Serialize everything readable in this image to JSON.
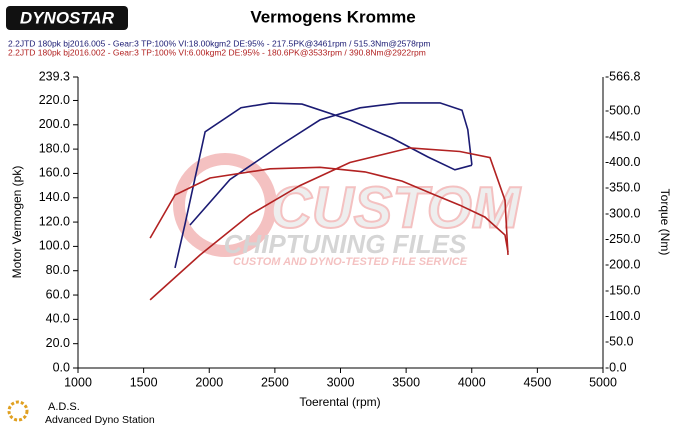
{
  "logo": "DYNOSTAR",
  "chart_data": {
    "type": "line",
    "title": "Vermogens Kromme",
    "xlabel": "Toerental (rpm)",
    "ylabel": "Motor Vermogen (pk)",
    "y2label": "Torque (Nm)",
    "xlim": [
      1000,
      5000
    ],
    "xticks": [
      1000,
      1500,
      2000,
      2500,
      3000,
      3500,
      4000,
      4500,
      5000
    ],
    "ylim": [
      0,
      239.3
    ],
    "yticks": [
      {
        "value": 0,
        "label": "0.0"
      },
      {
        "value": 20,
        "label": "20.0"
      },
      {
        "value": 40,
        "label": "40.0"
      },
      {
        "value": 60,
        "label": "60.0"
      },
      {
        "value": 80,
        "label": "80.0"
      },
      {
        "value": 100,
        "label": "100.0"
      },
      {
        "value": 120,
        "label": "120.0"
      },
      {
        "value": 140,
        "label": "140.0"
      },
      {
        "value": 160,
        "label": "160.0"
      },
      {
        "value": 180,
        "label": "180.0"
      },
      {
        "value": 200,
        "label": "200.0"
      },
      {
        "value": 220,
        "label": "220.0"
      },
      239.3
    ],
    "y2lim": [
      0,
      566.8
    ],
    "y2ticks": [
      {
        "value": 0,
        "label": "-0.0"
      },
      {
        "value": 50,
        "label": "-50.0"
      },
      {
        "value": 100,
        "label": "-100.0"
      },
      {
        "value": 150,
        "label": "-150.0"
      },
      {
        "value": 200,
        "label": "-200.0"
      },
      {
        "value": 250,
        "label": "-250.0"
      },
      {
        "value": 300,
        "label": "-300.0"
      },
      {
        "value": 350,
        "label": "-350.0"
      },
      {
        "value": 400,
        "label": "-400.0"
      },
      {
        "value": 450,
        "label": "-450.0"
      },
      {
        "value": 500,
        "label": "-500.0"
      },
      {
        "value": 566.8,
        "label": "-566.8"
      }
    ],
    "grid": false,
    "series": [
      {
        "name": "2.2JTD 180pk bj2016.005 - Gear:3 TP:100% VI:18.00kgm2 DE:95%   - 217.5PK@3461rpm / 515.3Nm@2578rpm",
        "color": "#1b1b73",
        "x": [
          1853,
          2158,
          2539,
          2844,
          3149,
          3453,
          3758,
          3926,
          3970,
          4001
        ],
        "values": [
          117.6,
          155,
          183,
          204,
          214,
          218,
          218,
          212,
          196,
          167
        ]
      },
      {
        "color": "#1b1b73",
        "axis": "y2",
        "x": [
          1739,
          1815,
          1968,
          2242,
          2463,
          2707,
          3072,
          3392,
          3667,
          3872,
          4002
        ],
        "values": [
          195,
          280,
          460,
          507,
          516,
          514,
          483,
          448,
          411,
          386,
          395
        ]
      },
      {
        "name": "2.2JTD 180pk bj2016.002 - Gear:3 TP:100% VI:6.00kgm2 DE:95%   - 180.6PK@3533rpm / 390.8Nm@2922rpm",
        "color": "#b22222",
        "x": [
          1549,
          1930,
          2310,
          2691,
          3072,
          3529,
          3910,
          4139,
          4253,
          4276
        ],
        "values": [
          56,
          93,
          126,
          150,
          169,
          181,
          178,
          173,
          138,
          93
        ]
      },
      {
        "color": "#b22222",
        "axis": "y2",
        "x": [
          1549,
          1739,
          2006,
          2463,
          2844,
          3187,
          3469,
          3720,
          3910,
          4101,
          4253,
          4276
        ],
        "values": [
          253,
          337,
          370,
          388,
          391,
          382,
          364,
          337,
          317,
          294,
          259,
          226
        ]
      }
    ]
  },
  "watermark": {
    "title": "CUSTOM",
    "subtitle": "CHIPTUNING FILES",
    "tagline": "CUSTOM AND DYNO-TESTED FILE SERVICE"
  },
  "footer": {
    "short": "A.D.S.",
    "long": "Advanced Dyno Station"
  }
}
